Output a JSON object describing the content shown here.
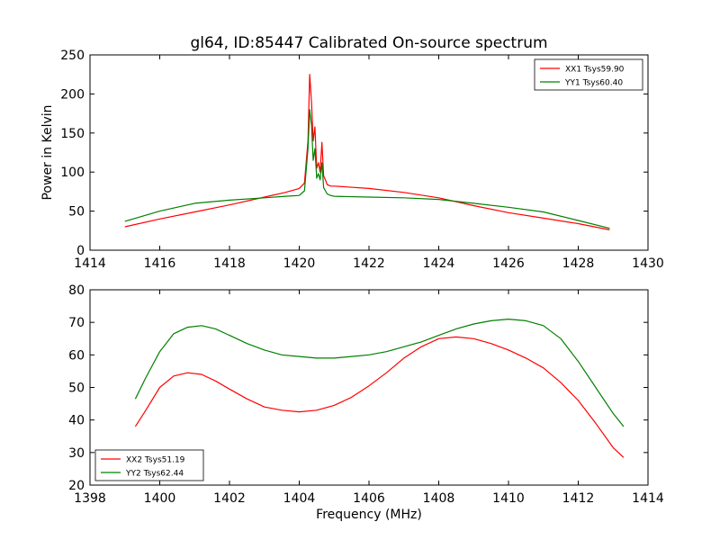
{
  "figure": {
    "title": "gl64, ID:85447 Calibrated On-source spectrum"
  },
  "chart_data": [
    {
      "type": "line",
      "title": "gl64, ID:85447 Calibrated On-source spectrum",
      "xlabel": "",
      "ylabel": "Power in Kelvin",
      "xlim": [
        1414,
        1430
      ],
      "ylim": [
        0,
        250
      ],
      "xticks": [
        1414,
        1416,
        1418,
        1420,
        1422,
        1424,
        1426,
        1428,
        1430
      ],
      "yticks": [
        0,
        50,
        100,
        150,
        200,
        250
      ],
      "legend_position": "top-right",
      "grid": false,
      "series": [
        {
          "name": "XX1 Tsys59.90",
          "color": "#ff0000",
          "x": [
            1415.0,
            1416.0,
            1417.0,
            1418.0,
            1419.0,
            1419.6,
            1420.0,
            1420.15,
            1420.25,
            1420.3,
            1420.35,
            1420.4,
            1420.45,
            1420.5,
            1420.55,
            1420.6,
            1420.65,
            1420.7,
            1420.75,
            1420.8,
            1420.9,
            1421.0,
            1422.0,
            1423.0,
            1424.0,
            1425.0,
            1426.0,
            1427.0,
            1428.0,
            1428.9
          ],
          "y": [
            30,
            40,
            49,
            58,
            68,
            74,
            79,
            86,
            140,
            225,
            190,
            140,
            158,
            105,
            112,
            100,
            138,
            95,
            90,
            84,
            82,
            82,
            79,
            74,
            67,
            57,
            48,
            41,
            34,
            26
          ]
        },
        {
          "name": "YY1 Tsys60.40",
          "color": "#008000",
          "x": [
            1415.0,
            1416.0,
            1417.0,
            1418.0,
            1419.0,
            1419.6,
            1420.0,
            1420.15,
            1420.25,
            1420.3,
            1420.35,
            1420.4,
            1420.45,
            1420.5,
            1420.55,
            1420.6,
            1420.65,
            1420.7,
            1420.75,
            1420.8,
            1420.9,
            1421.0,
            1422.0,
            1423.0,
            1424.0,
            1425.0,
            1426.0,
            1427.0,
            1428.0,
            1428.9
          ],
          "y": [
            37,
            50,
            60,
            64,
            67,
            69,
            70,
            76,
            130,
            180,
            160,
            115,
            130,
            92,
            98,
            90,
            112,
            80,
            76,
            72,
            70,
            69,
            68,
            67,
            65,
            60,
            55,
            49,
            38,
            28
          ]
        }
      ]
    },
    {
      "type": "line",
      "title": "",
      "xlabel": "Frequency (MHz)",
      "ylabel": "",
      "xlim": [
        1398,
        1414
      ],
      "ylim": [
        20,
        80
      ],
      "xticks": [
        1398,
        1400,
        1402,
        1404,
        1406,
        1408,
        1410,
        1412,
        1414
      ],
      "yticks": [
        20,
        30,
        40,
        50,
        60,
        70,
        80
      ],
      "legend_position": "bottom-left",
      "grid": false,
      "series": [
        {
          "name": "XX2 Tsys51.19",
          "color": "#ff0000",
          "x": [
            1399.3,
            1399.6,
            1400.0,
            1400.4,
            1400.8,
            1401.2,
            1401.6,
            1402.0,
            1402.5,
            1403.0,
            1403.5,
            1404.0,
            1404.5,
            1405.0,
            1405.5,
            1406.0,
            1406.5,
            1407.0,
            1407.5,
            1408.0,
            1408.5,
            1409.0,
            1409.5,
            1410.0,
            1410.5,
            1411.0,
            1411.5,
            1412.0,
            1412.5,
            1413.0,
            1413.3
          ],
          "y": [
            38,
            43,
            50,
            53.5,
            54.5,
            54,
            52,
            49.5,
            46.5,
            44,
            43,
            42.5,
            43,
            44.5,
            47,
            50.5,
            54.5,
            59,
            62.5,
            65,
            65.5,
            65,
            63.5,
            61.5,
            59,
            56,
            51.5,
            46,
            39,
            31.5,
            28.5
          ]
        },
        {
          "name": "YY2 Tsys62.44",
          "color": "#008000",
          "x": [
            1399.3,
            1399.6,
            1400.0,
            1400.4,
            1400.8,
            1401.2,
            1401.6,
            1402.0,
            1402.5,
            1403.0,
            1403.5,
            1404.0,
            1404.5,
            1405.0,
            1405.5,
            1406.0,
            1406.5,
            1407.0,
            1407.5,
            1408.0,
            1408.5,
            1409.0,
            1409.5,
            1410.0,
            1410.5,
            1411.0,
            1411.5,
            1412.0,
            1412.5,
            1413.0,
            1413.3
          ],
          "y": [
            46.5,
            53,
            61,
            66.5,
            68.5,
            69,
            68,
            66,
            63.5,
            61.5,
            60,
            59.5,
            59,
            59,
            59.5,
            60,
            61,
            62.5,
            64,
            66,
            68,
            69.5,
            70.5,
            71,
            70.5,
            69,
            65,
            58,
            50,
            42,
            38
          ]
        }
      ]
    }
  ]
}
